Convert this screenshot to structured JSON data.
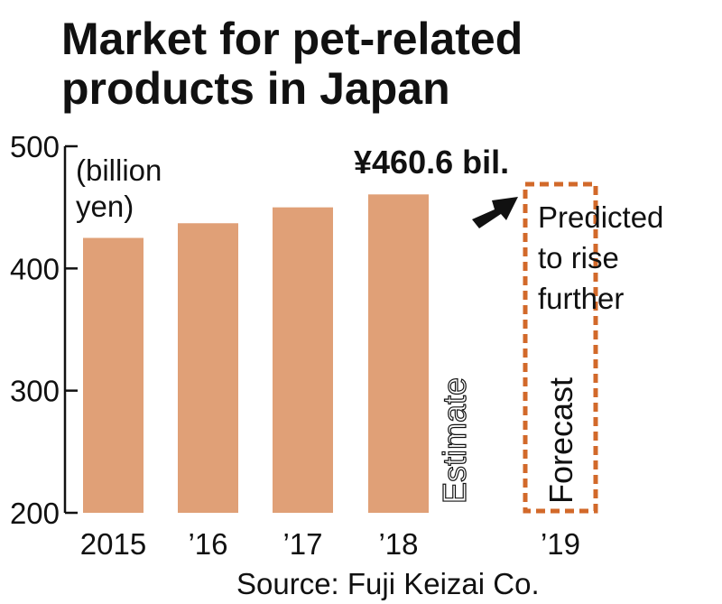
{
  "chart_data": {
    "type": "bar",
    "title": [
      "Market for pet-related",
      "products in Japan"
    ],
    "ylabel": [
      "(billion",
      "yen)"
    ],
    "categories": [
      "2015",
      "’16",
      "’17",
      "’18",
      "’19"
    ],
    "values": [
      425,
      437,
      450,
      460.6,
      null
    ],
    "ylim": [
      200,
      500
    ],
    "yticks": [
      "200",
      "300",
      "400",
      "500"
    ],
    "grid": false,
    "bar_color": "#e0a077",
    "forecast_border_color": "#d2692a",
    "annotations": {
      "value_label": "¥460.6 bil.",
      "estimate_label": "Estimate",
      "forecast_label": "Forecast",
      "prediction": [
        "Predicted",
        "to rise",
        "further"
      ]
    },
    "source": "Source: Fuji Keizai Co."
  }
}
